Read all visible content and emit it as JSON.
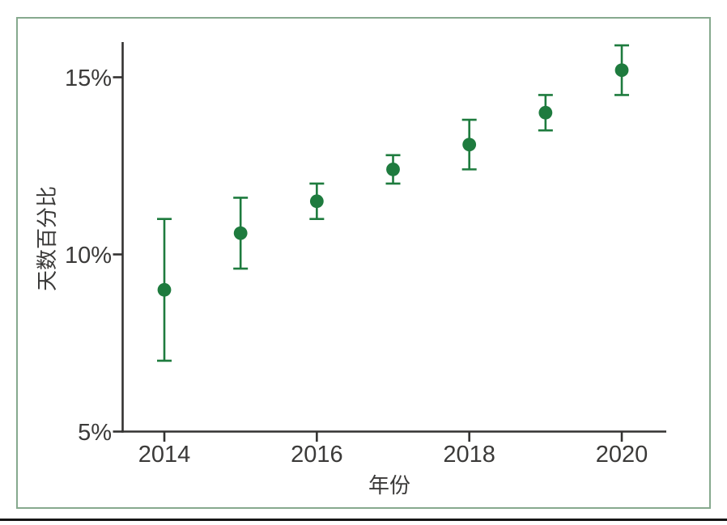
{
  "chart_data": {
    "type": "scatter",
    "title": "",
    "xlabel": "年份",
    "ylabel": "天数百分比",
    "x": [
      2014,
      2015,
      2016,
      2017,
      2018,
      2019,
      2020
    ],
    "series": [
      {
        "name": "天数百分比",
        "values": [
          9.0,
          10.6,
          11.5,
          12.4,
          13.1,
          14.0,
          15.2
        ],
        "ci_low": [
          7.0,
          9.6,
          11.0,
          12.0,
          12.4,
          13.5,
          14.5
        ],
        "ci_high": [
          11.0,
          11.6,
          12.0,
          12.8,
          13.8,
          14.5,
          15.9
        ]
      }
    ],
    "xticks": [
      2014,
      2016,
      2018,
      2020
    ],
    "xtick_labels": [
      "2014",
      "2016",
      "2018",
      "2020"
    ],
    "yticks": [
      5,
      10,
      15
    ],
    "ytick_labels": [
      "5%",
      "10%",
      "15%"
    ],
    "xlim": [
      2013.45,
      2020.6
    ],
    "ylim": [
      5,
      16
    ],
    "grid": false,
    "legend_position": "none",
    "marker": "filled-circle-with-error-bars",
    "colors": {
      "marker": "#1e7b3e",
      "error_bar": "#1e7b3e",
      "axis": "#333231",
      "text": "#3b3a39",
      "frame": "#86a98e",
      "bottom_rule": "#161616",
      "background": "#ffffff"
    }
  }
}
